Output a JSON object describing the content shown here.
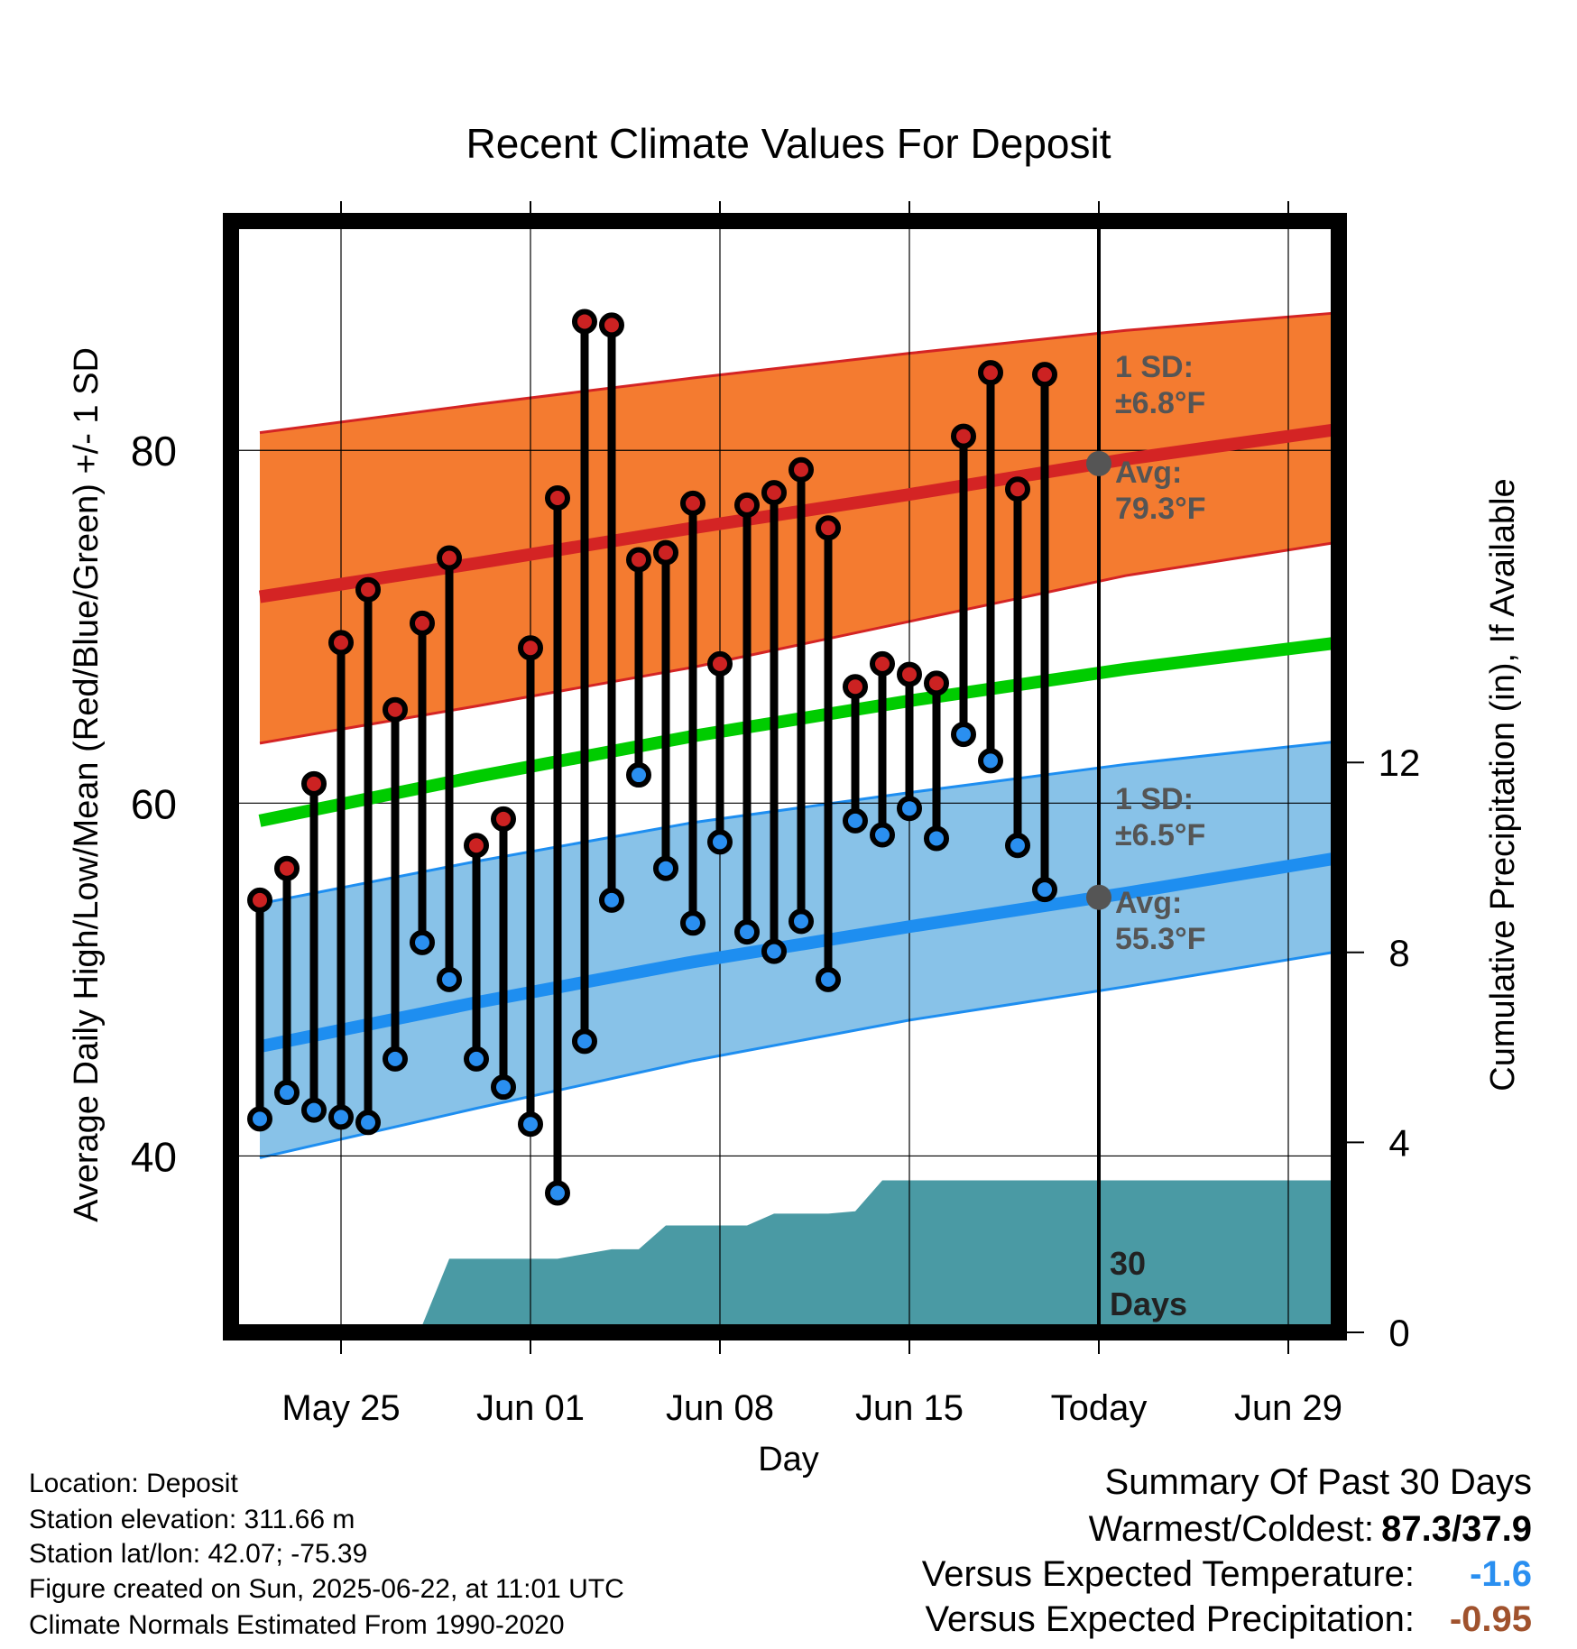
{
  "chart_data": {
    "type": "line",
    "title": "Recent Climate Values For Deposit",
    "xlabel": "Day",
    "ylabel": "Average Daily High/Low/Mean (Red/Blue/Green) +/- 1 SD",
    "y2label": "Cumulative Precipitation (in), If Available",
    "ylim": [
      30,
      93
    ],
    "y2lim": [
      0,
      23.4
    ],
    "x_start": "May 22",
    "x_end": "Jul 02",
    "x_tick_labels": [
      "May 25",
      "Jun 01",
      "Jun 08",
      "Jun 15",
      "Today",
      "Jun 29"
    ],
    "x_tick_days": [
      3,
      10,
      17,
      24,
      31,
      38
    ],
    "y_tick_labels": [
      "40",
      "60",
      "80"
    ],
    "y_tick_values": [
      40,
      60,
      80
    ],
    "y2_tick_labels": [
      "0",
      "4",
      "8",
      "12"
    ],
    "y2_tick_values": [
      0,
      4,
      8,
      12
    ],
    "grid": true,
    "today_day": 31,
    "today_label": "30 Days",
    "days": [
      0,
      1,
      2,
      3,
      4,
      5,
      6,
      7,
      8,
      9,
      10,
      11,
      12,
      13,
      14,
      15,
      16,
      17,
      18,
      19,
      20,
      21,
      22,
      23,
      24,
      25,
      26,
      27,
      28,
      29
    ],
    "daily_high": [
      54.5,
      56.3,
      61.1,
      69.1,
      72.1,
      65.3,
      70.2,
      73.9,
      57.6,
      59.1,
      68.8,
      77.3,
      87.3,
      87.1,
      73.8,
      74.2,
      77.0,
      67.9,
      76.9,
      77.6,
      78.9,
      75.6,
      66.6,
      67.9,
      67.3,
      66.8,
      80.8,
      84.4,
      77.8,
      84.3
    ],
    "daily_low": [
      42.1,
      43.6,
      42.6,
      42.2,
      41.9,
      45.5,
      52.1,
      50.0,
      45.5,
      43.9,
      41.8,
      37.9,
      46.5,
      54.5,
      61.6,
      56.3,
      53.2,
      57.8,
      52.7,
      51.6,
      53.3,
      50.0,
      59.0,
      58.2,
      59.7,
      58.0,
      63.9,
      62.4,
      57.6,
      55.1
    ],
    "normal_days": [
      0,
      8,
      16,
      24,
      32,
      40
    ],
    "normal_high": [
      71.7,
      73.6,
      75.6,
      77.5,
      79.5,
      81.2
    ],
    "normal_high_upper": [
      81.0,
      82.6,
      84.1,
      85.5,
      86.8,
      87.8
    ],
    "normal_high_lower": [
      63.4,
      65.5,
      67.7,
      70.3,
      72.9,
      74.8
    ],
    "normal_mean": [
      59.0,
      61.5,
      63.8,
      65.8,
      67.6,
      69.1
    ],
    "normal_low": [
      46.2,
      48.7,
      51.0,
      53.0,
      54.9,
      56.9
    ],
    "normal_low_upper": [
      54.3,
      56.7,
      58.9,
      60.6,
      62.2,
      63.5
    ],
    "normal_low_lower": [
      39.9,
      42.7,
      45.4,
      47.7,
      49.6,
      51.6
    ],
    "precip_days": [
      0,
      1,
      5,
      6,
      7,
      8,
      9,
      10,
      11,
      12,
      13,
      14,
      15,
      16,
      17,
      18,
      19,
      20,
      21,
      22,
      23,
      24,
      25,
      26,
      27,
      28,
      29,
      30,
      31,
      32,
      33,
      34,
      35,
      36,
      37,
      38,
      39,
      40
    ],
    "precip_cumulative": [
      0.0,
      0.05,
      0.1,
      0.15,
      1.55,
      1.55,
      1.55,
      1.55,
      1.55,
      1.65,
      1.75,
      1.75,
      2.25,
      2.25,
      2.25,
      2.25,
      2.5,
      2.5,
      2.5,
      2.55,
      3.2,
      3.2,
      3.2,
      3.2,
      3.2,
      3.2,
      3.2,
      3.2,
      3.2,
      3.2,
      3.2,
      3.2,
      3.2,
      3.2,
      3.2,
      3.2,
      3.2,
      3.2
    ],
    "annotations": {
      "high_sd": "1 SD:",
      "high_sd_val": "±6.8°F",
      "high_avg": "Avg:",
      "high_avg_val": "79.3°F",
      "low_sd": "1 SD:",
      "low_sd_val": "±6.5°F",
      "low_avg": "Avg:",
      "low_avg_val": "55.3°F"
    },
    "colors": {
      "high_band": "#f47b30",
      "high_line": "#d42424",
      "low_band": "#88c2e8",
      "low_line": "#1e8ef0",
      "mean_line": "#00cc00",
      "precip": "#4a9aa4",
      "high_marker": "#cc2222",
      "low_marker": "#2a8ff0",
      "today_marker": "#555555"
    }
  },
  "footer": {
    "location": "Location: Deposit",
    "elevation": "Station elevation: 311.66 m",
    "latlon": "Station lat/lon: 42.07; -75.39",
    "created": "Figure created on Sun, 2025-06-22, at 11:01 UTC",
    "normals": "Climate Normals Estimated From 1990-2020"
  },
  "summary": {
    "title": "Summary Of Past 30 Days",
    "warmest_label": "Warmest/Coldest:",
    "warmest_value": "87.3/37.9",
    "temp_label": "Versus Expected Temperature:",
    "temp_value": "-1.6",
    "temp_color": "#2a8ff0",
    "precip_label": "Versus Expected Precipitation:",
    "precip_value": "-0.95",
    "precip_color": "#a0522d"
  }
}
